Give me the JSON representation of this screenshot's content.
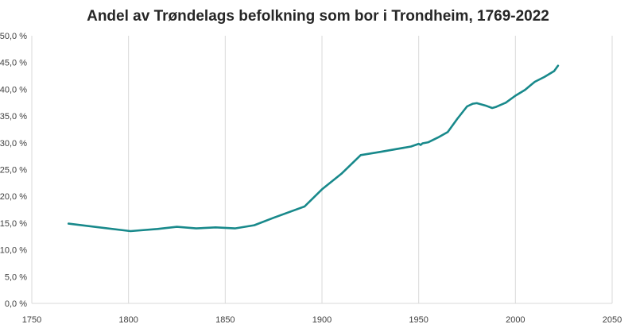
{
  "colors": {
    "series": "#18898b",
    "grid": "#d9d9d9",
    "text": "#404040"
  },
  "chart_data": {
    "type": "line",
    "title": "Andel av Trøndelags befolkning som bor i Trondheim, 1769-2022",
    "xlabel": "",
    "ylabel": "",
    "xlim": [
      1750,
      2050
    ],
    "ylim": [
      0,
      50
    ],
    "x_ticks": [
      1750,
      1800,
      1850,
      1900,
      1950,
      2000,
      2050
    ],
    "x_tick_labels": [
      "1750",
      "1800",
      "1850",
      "1900",
      "1950",
      "2000",
      "2050"
    ],
    "y_ticks": [
      0,
      5,
      10,
      15,
      20,
      25,
      30,
      35,
      40,
      45,
      50
    ],
    "y_tick_labels": [
      "0,0 %",
      "5,0 %",
      "10,0 %",
      "15,0 %",
      "20,0 %",
      "25,0 %",
      "30,0 %",
      "35,0 %",
      "40,0 %",
      "45,0 %",
      "50,0 %"
    ],
    "grid": "vertical",
    "legend": "none",
    "series": [
      {
        "x": [
          1769,
          1801,
          1815,
          1825,
          1835,
          1845,
          1855,
          1865,
          1875,
          1891,
          1900,
          1910,
          1920,
          1930,
          1946,
          1950,
          1951,
          1952,
          1955,
          1960,
          1965,
          1970,
          1975,
          1978,
          1980,
          1985,
          1988,
          1990,
          1995,
          2000,
          2005,
          2008,
          2010,
          2015,
          2020,
          2022
        ],
        "y": [
          14.9,
          13.5,
          13.9,
          14.3,
          14.0,
          14.2,
          14.0,
          14.6,
          16.0,
          18.1,
          21.3,
          24.2,
          27.7,
          28.3,
          29.3,
          29.8,
          29.6,
          29.9,
          30.1,
          31.0,
          32.0,
          34.5,
          36.8,
          37.3,
          37.4,
          36.9,
          36.5,
          36.7,
          37.5,
          38.8,
          39.9,
          40.8,
          41.4,
          42.3,
          43.4,
          44.4
        ]
      }
    ]
  }
}
